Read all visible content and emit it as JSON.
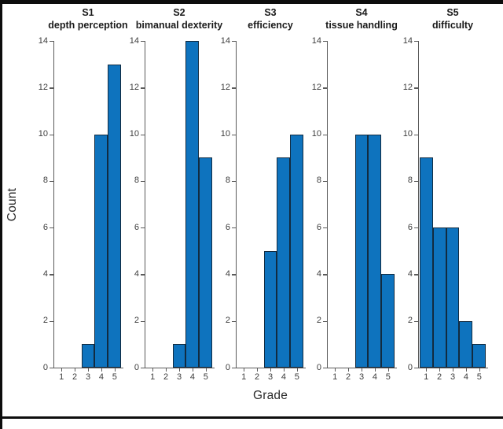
{
  "figure": {
    "ylabel": "Count",
    "xlabel": "Grade",
    "bar_color": "#0e73be",
    "bar_edge_color": "#122b40",
    "axis_color": "#5a5a5a",
    "tick_label_color": "#3d3d3d",
    "y_ticks": [
      0,
      2,
      4,
      6,
      8,
      10,
      12,
      14
    ],
    "x_ticks": [
      1,
      2,
      3,
      4,
      5
    ]
  },
  "chart_data": [
    {
      "type": "bar",
      "title": "S1",
      "subtitle": "depth perception",
      "categories": [
        1,
        2,
        3,
        4,
        5
      ],
      "values": [
        0,
        0,
        1,
        10,
        13
      ],
      "xlabel": "Grade",
      "ylabel": "Count",
      "ylim": [
        0,
        14
      ],
      "xlim": [
        0.4,
        5.6
      ],
      "grid": false,
      "legend": "none"
    },
    {
      "type": "bar",
      "title": "S2",
      "subtitle": "bimanual dexterity",
      "categories": [
        1,
        2,
        3,
        4,
        5
      ],
      "values": [
        0,
        0,
        1,
        14,
        9
      ],
      "xlabel": "Grade",
      "ylabel": "Count",
      "ylim": [
        0,
        14
      ],
      "xlim": [
        0.4,
        5.6
      ],
      "grid": false,
      "legend": "none"
    },
    {
      "type": "bar",
      "title": "S3",
      "subtitle": "efficiency",
      "categories": [
        1,
        2,
        3,
        4,
        5
      ],
      "values": [
        0,
        0,
        5,
        9,
        10
      ],
      "xlabel": "Grade",
      "ylabel": "Count",
      "ylim": [
        0,
        14
      ],
      "xlim": [
        0.4,
        5.6
      ],
      "grid": false,
      "legend": "none"
    },
    {
      "type": "bar",
      "title": "S4",
      "subtitle": "tissue handling",
      "categories": [
        1,
        2,
        3,
        4,
        5
      ],
      "values": [
        0,
        0,
        10,
        10,
        4
      ],
      "xlabel": "Grade",
      "ylabel": "Count",
      "ylim": [
        0,
        14
      ],
      "xlim": [
        0.4,
        5.6
      ],
      "grid": false,
      "legend": "none"
    },
    {
      "type": "bar",
      "title": "S5",
      "subtitle": "difficulty",
      "categories": [
        1,
        2,
        3,
        4,
        5
      ],
      "values": [
        9,
        6,
        6,
        2,
        1
      ],
      "xlabel": "Grade",
      "ylabel": "Count",
      "ylim": [
        0,
        14
      ],
      "xlim": [
        0.4,
        5.6
      ],
      "grid": false,
      "legend": "none"
    }
  ]
}
